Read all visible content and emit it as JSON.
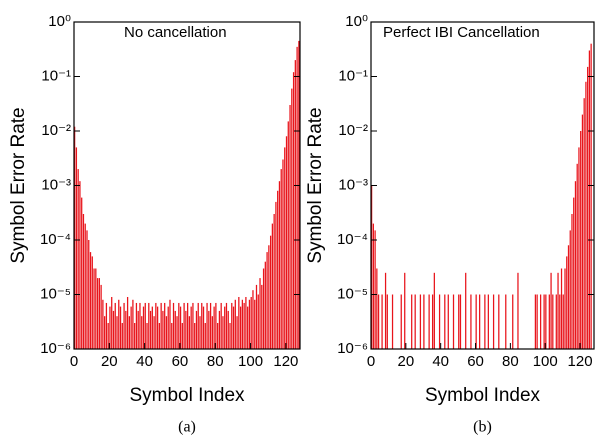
{
  "chart_data": [
    {
      "type": "bar",
      "title": "No cancellation",
      "xlabel": "Symbol Index",
      "ylabel": "Symbol Error Rate",
      "caption": "(a)",
      "color": "#e8141b",
      "yscale": "log",
      "xlim": [
        0,
        128
      ],
      "xticks": [
        0,
        20,
        40,
        60,
        80,
        100,
        120
      ],
      "ylim": [
        1e-06,
        1
      ],
      "yticks": [
        {
          "value": 1e-06,
          "label": "10⁻⁶"
        },
        {
          "value": 1e-05,
          "label": "10⁻⁵"
        },
        {
          "value": 0.0001,
          "label": "10⁻⁴"
        },
        {
          "value": 0.001,
          "label": "10⁻³"
        },
        {
          "value": 0.01,
          "label": "10⁻²"
        },
        {
          "value": 0.1,
          "label": "10⁻¹"
        },
        {
          "value": 1,
          "label": "10⁰"
        }
      ],
      "x": [
        0,
        1,
        2,
        3,
        4,
        5,
        6,
        7,
        8,
        9,
        10,
        11,
        12,
        13,
        14,
        15,
        16,
        17,
        18,
        19,
        20,
        21,
        22,
        23,
        24,
        25,
        26,
        27,
        28,
        29,
        30,
        31,
        32,
        33,
        34,
        35,
        36,
        37,
        38,
        39,
        40,
        41,
        42,
        43,
        44,
        45,
        46,
        47,
        48,
        49,
        50,
        51,
        52,
        53,
        54,
        55,
        56,
        57,
        58,
        59,
        60,
        61,
        62,
        63,
        64,
        65,
        66,
        67,
        68,
        69,
        70,
        71,
        72,
        73,
        74,
        75,
        76,
        77,
        78,
        79,
        80,
        81,
        82,
        83,
        84,
        85,
        86,
        87,
        88,
        89,
        90,
        91,
        92,
        93,
        94,
        95,
        96,
        97,
        98,
        99,
        100,
        101,
        102,
        103,
        104,
        105,
        106,
        107,
        108,
        109,
        110,
        111,
        112,
        113,
        114,
        115,
        116,
        117,
        118,
        119,
        120,
        121,
        122,
        123,
        124,
        125,
        126,
        127
      ],
      "values": [
        0.012,
        0.005,
        0.002,
        0.0012,
        0.0006,
        0.0003,
        0.0002,
        0.00015,
        0.0001,
        6e-05,
        5e-05,
        3e-05,
        3e-05,
        2e-05,
        2e-05,
        1.5e-05,
        8e-06,
        4e-06,
        7e-06,
        3e-06,
        6e-06,
        9e-06,
        5e-06,
        7e-06,
        4e-06,
        8e-06,
        6e-06,
        3e-06,
        7e-06,
        5e-06,
        9e-06,
        4e-06,
        6e-06,
        8e-06,
        3e-06,
        7e-06,
        5e-06,
        7e-06,
        4e-06,
        6e-06,
        7e-06,
        3e-06,
        7e-06,
        5e-06,
        6e-06,
        4e-06,
        7e-06,
        6e-06,
        3e-06,
        7e-06,
        5e-06,
        7e-06,
        4e-06,
        6e-06,
        8e-06,
        3e-06,
        7e-06,
        5e-06,
        4e-06,
        7e-06,
        6e-06,
        3e-06,
        7e-06,
        5e-06,
        7e-06,
        4e-06,
        6e-06,
        7e-06,
        3e-06,
        5e-06,
        7e-06,
        4e-06,
        7e-06,
        6e-06,
        3e-06,
        7e-06,
        5e-06,
        7e-06,
        4e-06,
        6e-06,
        7e-06,
        3e-06,
        5e-06,
        7e-06,
        4e-06,
        6e-06,
        7e-06,
        5e-06,
        3e-06,
        7e-06,
        6e-06,
        8e-06,
        4e-06,
        9e-06,
        6e-06,
        8e-06,
        7e-06,
        9e-06,
        6e-06,
        8e-06,
        9e-06,
        1.2e-05,
        8e-06,
        1.5e-05,
        1e-05,
        2e-05,
        1.5e-05,
        3e-05,
        4e-05,
        6e-05,
        8e-05,
        0.00012,
        0.0002,
        0.0003,
        0.0005,
        0.0008,
        0.0012,
        0.002,
        0.003,
        0.005,
        0.008,
        0.015,
        0.03,
        0.06,
        0.12,
        0.2,
        0.35,
        0.45
      ]
    },
    {
      "type": "bar",
      "title": "Perfect IBI Cancellation",
      "xlabel": "Symbol Index",
      "ylabel": "Symbol Error Rate",
      "caption": "(b)",
      "color": "#e8141b",
      "yscale": "log",
      "xlim": [
        0,
        128
      ],
      "xticks": [
        0,
        20,
        40,
        60,
        80,
        100,
        120
      ],
      "ylim": [
        1e-06,
        1
      ],
      "yticks": [
        {
          "value": 1e-06,
          "label": "10⁻⁶"
        },
        {
          "value": 1e-05,
          "label": "10⁻⁵"
        },
        {
          "value": 0.0001,
          "label": "10⁻⁴"
        },
        {
          "value": 0.001,
          "label": "10⁻³"
        },
        {
          "value": 0.01,
          "label": "10⁻²"
        },
        {
          "value": 0.1,
          "label": "10⁻¹"
        },
        {
          "value": 1,
          "label": "10⁰"
        }
      ],
      "x": [
        0,
        1,
        2,
        3,
        4,
        5,
        6,
        7,
        8,
        9,
        10,
        11,
        12,
        13,
        14,
        15,
        16,
        17,
        18,
        19,
        20,
        21,
        22,
        23,
        24,
        25,
        26,
        27,
        28,
        29,
        30,
        31,
        32,
        33,
        34,
        35,
        36,
        37,
        38,
        39,
        40,
        41,
        42,
        43,
        44,
        45,
        46,
        47,
        48,
        49,
        50,
        51,
        52,
        53,
        54,
        55,
        56,
        57,
        58,
        59,
        60,
        61,
        62,
        63,
        64,
        65,
        66,
        67,
        68,
        69,
        70,
        71,
        72,
        73,
        74,
        75,
        76,
        77,
        78,
        79,
        80,
        81,
        82,
        83,
        84,
        85,
        86,
        87,
        88,
        89,
        90,
        91,
        92,
        93,
        94,
        95,
        96,
        97,
        98,
        99,
        100,
        101,
        102,
        103,
        104,
        105,
        106,
        107,
        108,
        109,
        110,
        111,
        112,
        113,
        114,
        115,
        116,
        117,
        118,
        119,
        120,
        121,
        122,
        123,
        124,
        125,
        126,
        127
      ],
      "values": [
        0.001,
        0.0002,
        0.00015,
        3e-05,
        1e-05,
        null,
        1e-05,
        null,
        2.5e-05,
        1e-05,
        null,
        null,
        1e-05,
        null,
        null,
        null,
        null,
        1e-05,
        null,
        2.5e-05,
        null,
        null,
        null,
        1e-05,
        null,
        1e-05,
        null,
        null,
        1e-05,
        null,
        1e-05,
        null,
        null,
        1e-05,
        null,
        1e-05,
        2.5e-05,
        null,
        null,
        1e-05,
        null,
        null,
        1e-05,
        null,
        1e-05,
        null,
        null,
        1e-05,
        null,
        null,
        1e-05,
        1e-05,
        null,
        null,
        2.5e-05,
        null,
        null,
        1e-05,
        null,
        null,
        1e-05,
        null,
        1e-05,
        null,
        null,
        1e-05,
        null,
        1e-05,
        null,
        null,
        1e-05,
        null,
        null,
        1e-05,
        null,
        null,
        null,
        1e-05,
        null,
        null,
        null,
        1e-05,
        null,
        null,
        2.5e-05,
        null,
        null,
        null,
        null,
        null,
        null,
        null,
        null,
        null,
        1e-05,
        1e-05,
        null,
        1e-05,
        null,
        1e-05,
        1e-05,
        null,
        1e-05,
        2.5e-05,
        1e-05,
        null,
        1e-05,
        2.5e-05,
        1e-05,
        3e-05,
        1e-05,
        3e-05,
        5e-05,
        8e-05,
        0.00015,
        0.0003,
        0.0006,
        0.0012,
        0.0025,
        0.005,
        0.01,
        0.02,
        0.04,
        0.08,
        0.15,
        0.3,
        0.4,
        null
      ]
    }
  ]
}
